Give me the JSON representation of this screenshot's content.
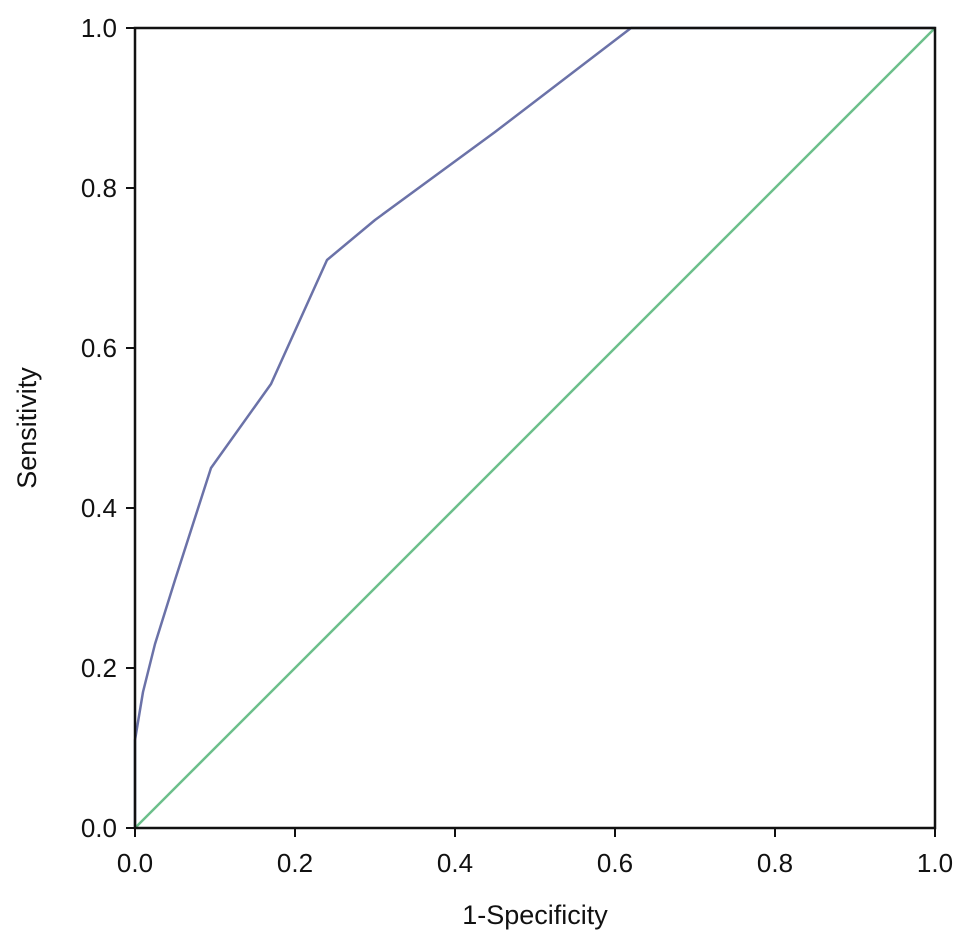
{
  "chart_data": {
    "type": "line",
    "title": "",
    "xlabel": "1-Specificity",
    "ylabel": "Sensitivity",
    "xlim": [
      0,
      1
    ],
    "ylim": [
      0,
      1
    ],
    "x_ticks": [
      "0.0",
      "0.2",
      "0.4",
      "0.6",
      "0.8",
      "1.0"
    ],
    "y_ticks": [
      "0.0",
      "0.2",
      "0.4",
      "0.6",
      "0.8",
      "1.0"
    ],
    "grid": false,
    "legend": "none",
    "series": [
      {
        "color": "#6b72a8",
        "x": [
          0.0,
          0.0,
          0.01,
          0.025,
          0.05,
          0.095,
          0.17,
          0.24,
          0.3,
          0.45,
          0.62,
          1.0
        ],
        "y": [
          0.0,
          0.11,
          0.17,
          0.23,
          0.31,
          0.45,
          0.555,
          0.71,
          0.76,
          0.87,
          1.0,
          1.0
        ]
      },
      {
        "color": "#6cbf8b",
        "x": [
          0.0,
          1.0
        ],
        "y": [
          0.0,
          1.0
        ]
      }
    ]
  }
}
